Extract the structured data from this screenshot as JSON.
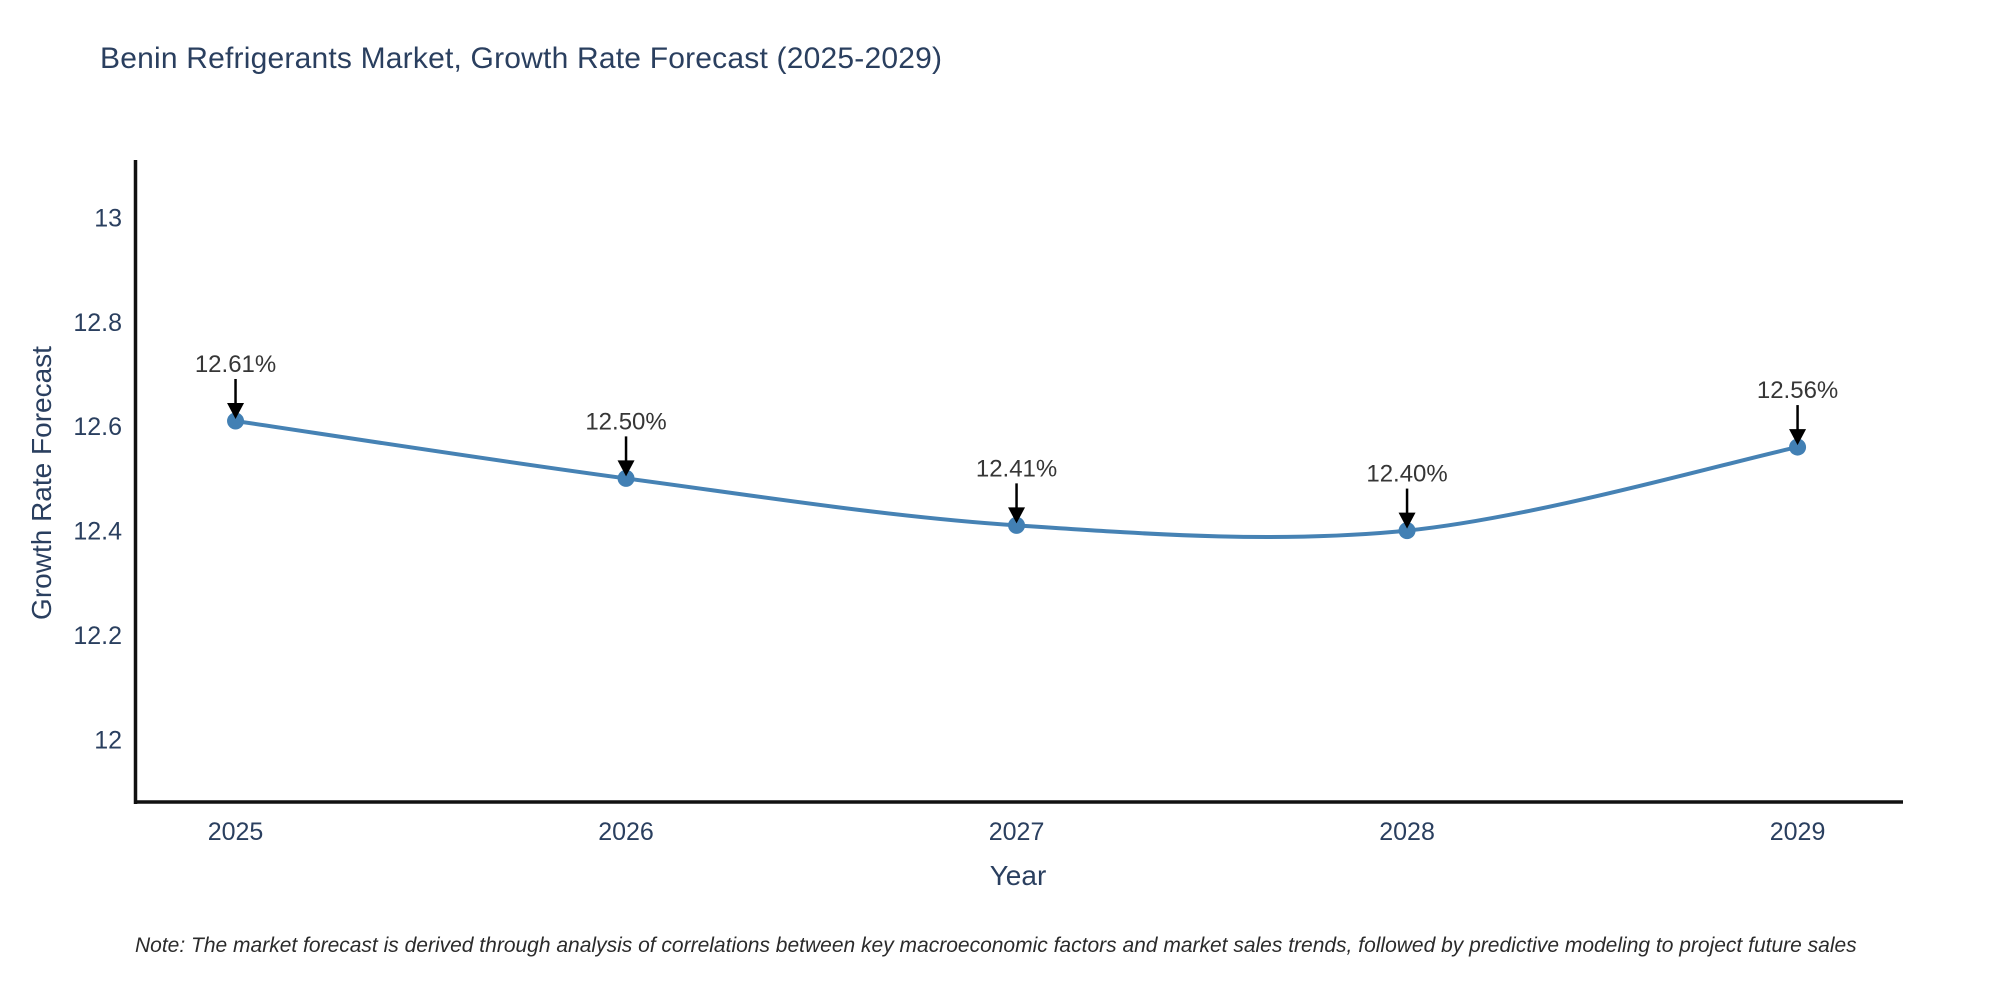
{
  "title": "Benin Refrigerants Market, Growth Rate Forecast (2025-2029)",
  "footnote": "Note: The market forecast is derived through analysis of correlations between key macroeconomic factors and market sales trends, followed by predictive modeling to project future sales",
  "colors": {
    "background": "#ffffff",
    "title_text": "#2a3f5f",
    "axis_text": "#2a3f5f",
    "annotation_text": "#363636",
    "axis_line": "#111111",
    "line": "#4682b4",
    "marker": "#4280b4",
    "arrow": "#000000"
  },
  "chart_data": {
    "type": "line",
    "title": "Benin Refrigerants Market, Growth Rate Forecast (2025-2029)",
    "xlabel": "Year",
    "ylabel": "Growth Rate Forecast",
    "x": [
      2025,
      2026,
      2027,
      2028,
      2029
    ],
    "series": [
      {
        "name": "Growth Rate Forecast",
        "values": [
          12.61,
          12.5,
          12.41,
          12.4,
          12.56
        ]
      }
    ],
    "point_labels": [
      "12.61%",
      "12.50%",
      "12.41%",
      "12.40%",
      "12.56%"
    ],
    "x_ticks": [
      "2025",
      "2026",
      "2027",
      "2028",
      "2029"
    ],
    "y_ticks": [
      12,
      12.2,
      12.4,
      12.6,
      12.8,
      13
    ],
    "xlim": [
      2024.74,
      2029.27
    ],
    "ylim": [
      11.88,
      13.11
    ],
    "grid": false,
    "legend": "none",
    "line_shape": "spline",
    "annotation_arrows": true
  }
}
